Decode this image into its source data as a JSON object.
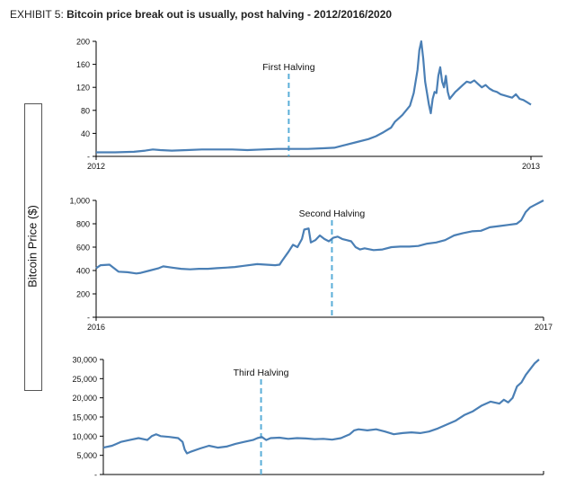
{
  "header": {
    "exhibit_label": "EXHIBIT 5: ",
    "title": "Bitcoin price break out is usually, post halving - 2012/2016/2020"
  },
  "y_axis_title": "Bitcoin Price ($)",
  "colors": {
    "line": "#4a7fb5",
    "halving": "#5aaed8",
    "axis": "#000000",
    "text": "#111111"
  },
  "chart_data": [
    {
      "type": "line",
      "ylim": [
        0,
        200
      ],
      "yticks": [
        "200",
        "160",
        "120",
        "80",
        "40",
        "-"
      ],
      "ytick_values": [
        200,
        160,
        120,
        80,
        40,
        0
      ],
      "xticks": [
        "2012",
        "2013"
      ],
      "annotation": {
        "label": "First Halving",
        "x": 0.443
      },
      "series": [
        {
          "values": [
            [
              0,
              7
            ],
            [
              0.05,
              7
            ],
            [
              0.1,
              8
            ],
            [
              0.13,
              10
            ],
            [
              0.15,
              12
            ],
            [
              0.17,
              11
            ],
            [
              0.2,
              10
            ],
            [
              0.24,
              11
            ],
            [
              0.28,
              12
            ],
            [
              0.32,
              12
            ],
            [
              0.36,
              12
            ],
            [
              0.4,
              11
            ],
            [
              0.44,
              12
            ],
            [
              0.48,
              13
            ],
            [
              0.52,
              13
            ],
            [
              0.56,
              13
            ],
            [
              0.6,
              14
            ],
            [
              0.63,
              15
            ],
            [
              0.66,
              20
            ],
            [
              0.69,
              25
            ],
            [
              0.72,
              30
            ],
            [
              0.74,
              35
            ],
            [
              0.76,
              42
            ],
            [
              0.78,
              50
            ],
            [
              0.79,
              60
            ],
            [
              0.8,
              66
            ],
            [
              0.81,
              72
            ],
            [
              0.82,
              80
            ],
            [
              0.83,
              88
            ],
            [
              0.84,
              110
            ],
            [
              0.85,
              150
            ],
            [
              0.855,
              185
            ],
            [
              0.86,
              200
            ],
            [
              0.865,
              170
            ],
            [
              0.87,
              130
            ],
            [
              0.875,
              110
            ],
            [
              0.88,
              90
            ],
            [
              0.885,
              75
            ],
            [
              0.89,
              100
            ],
            [
              0.895,
              112
            ],
            [
              0.9,
              110
            ],
            [
              0.905,
              140
            ],
            [
              0.91,
              155
            ],
            [
              0.915,
              130
            ],
            [
              0.92,
              120
            ],
            [
              0.925,
              140
            ],
            [
              0.93,
              112
            ],
            [
              0.935,
              100
            ],
            [
              0.94,
              104
            ],
            [
              0.95,
              112
            ],
            [
              0.96,
              118
            ],
            [
              0.97,
              124
            ],
            [
              0.98,
              130
            ],
            [
              0.99,
              128
            ],
            [
              1,
              132
            ],
            [
              1.01,
              126
            ],
            [
              1.02,
              120
            ],
            [
              1.03,
              124
            ],
            [
              1.04,
              118
            ],
            [
              1.05,
              114
            ],
            [
              1.06,
              112
            ],
            [
              1.07,
              108
            ],
            [
              1.08,
              106
            ],
            [
              1.09,
              104
            ],
            [
              1.1,
              102
            ],
            [
              1.11,
              108
            ],
            [
              1.12,
              100
            ],
            [
              1.13,
              98
            ],
            [
              1.14,
              94
            ],
            [
              1.15,
              90
            ]
          ]
        }
      ]
    },
    {
      "type": "line",
      "ylim": [
        0,
        1000
      ],
      "yticks": [
        "1,000",
        "800",
        "600",
        "400",
        "200",
        "-"
      ],
      "ytick_values": [
        1000,
        800,
        600,
        400,
        200,
        0
      ],
      "xticks": [
        "2016",
        "2017"
      ],
      "annotation": {
        "label": "Second Halving",
        "x": 0.527
      },
      "series": [
        {
          "values": [
            [
              0,
              420
            ],
            [
              0.01,
              445
            ],
            [
              0.03,
              450
            ],
            [
              0.04,
              420
            ],
            [
              0.05,
              390
            ],
            [
              0.07,
              385
            ],
            [
              0.09,
              375
            ],
            [
              0.1,
              380
            ],
            [
              0.12,
              400
            ],
            [
              0.14,
              420
            ],
            [
              0.15,
              435
            ],
            [
              0.17,
              425
            ],
            [
              0.19,
              415
            ],
            [
              0.21,
              410
            ],
            [
              0.23,
              415
            ],
            [
              0.25,
              415
            ],
            [
              0.27,
              420
            ],
            [
              0.29,
              425
            ],
            [
              0.31,
              430
            ],
            [
              0.33,
              440
            ],
            [
              0.36,
              455
            ],
            [
              0.38,
              450
            ],
            [
              0.4,
              445
            ],
            [
              0.41,
              450
            ],
            [
              0.415,
              480
            ],
            [
              0.43,
              560
            ],
            [
              0.44,
              620
            ],
            [
              0.45,
              600
            ],
            [
              0.46,
              670
            ],
            [
              0.465,
              750
            ],
            [
              0.475,
              760
            ],
            [
              0.48,
              640
            ],
            [
              0.49,
              660
            ],
            [
              0.5,
              700
            ],
            [
              0.51,
              670
            ],
            [
              0.52,
              650
            ],
            [
              0.53,
              680
            ],
            [
              0.54,
              690
            ],
            [
              0.55,
              670
            ],
            [
              0.56,
              660
            ],
            [
              0.57,
              650
            ],
            [
              0.58,
              600
            ],
            [
              0.59,
              580
            ],
            [
              0.6,
              590
            ],
            [
              0.62,
              575
            ],
            [
              0.64,
              580
            ],
            [
              0.66,
              600
            ],
            [
              0.68,
              605
            ],
            [
              0.7,
              605
            ],
            [
              0.72,
              610
            ],
            [
              0.74,
              630
            ],
            [
              0.76,
              640
            ],
            [
              0.78,
              660
            ],
            [
              0.8,
              700
            ],
            [
              0.82,
              720
            ],
            [
              0.84,
              735
            ],
            [
              0.86,
              740
            ],
            [
              0.88,
              770
            ],
            [
              0.9,
              780
            ],
            [
              0.92,
              790
            ],
            [
              0.94,
              800
            ],
            [
              0.95,
              830
            ],
            [
              0.96,
              900
            ],
            [
              0.97,
              940
            ],
            [
              0.98,
              960
            ],
            [
              0.99,
              980
            ],
            [
              1,
              1000
            ]
          ]
        }
      ]
    },
    {
      "type": "line",
      "ylim": [
        0,
        30000
      ],
      "yticks": [
        "30,000",
        "25,000",
        "20,000",
        "15,000",
        "10,000",
        "5,000",
        "-"
      ],
      "ytick_values": [
        30000,
        25000,
        20000,
        15000,
        10000,
        5000,
        0
      ],
      "xticks": [],
      "annotation": {
        "label": "Third Halving",
        "x": 0.362
      },
      "series": [
        {
          "values": [
            [
              0,
              7000
            ],
            [
              0.02,
              7500
            ],
            [
              0.04,
              8500
            ],
            [
              0.06,
              9000
            ],
            [
              0.08,
              9500
            ],
            [
              0.1,
              9000
            ],
            [
              0.11,
              10000
            ],
            [
              0.12,
              10500
            ],
            [
              0.13,
              10000
            ],
            [
              0.15,
              9800
            ],
            [
              0.17,
              9500
            ],
            [
              0.18,
              8500
            ],
            [
              0.185,
              6500
            ],
            [
              0.19,
              5500
            ],
            [
              0.2,
              6000
            ],
            [
              0.22,
              6800
            ],
            [
              0.24,
              7500
            ],
            [
              0.26,
              7000
            ],
            [
              0.28,
              7300
            ],
            [
              0.3,
              8000
            ],
            [
              0.32,
              8500
            ],
            [
              0.34,
              9000
            ],
            [
              0.35,
              9500
            ],
            [
              0.36,
              9800
            ],
            [
              0.37,
              9000
            ],
            [
              0.38,
              9500
            ],
            [
              0.4,
              9600
            ],
            [
              0.42,
              9300
            ],
            [
              0.44,
              9500
            ],
            [
              0.46,
              9400
            ],
            [
              0.48,
              9200
            ],
            [
              0.5,
              9300
            ],
            [
              0.52,
              9100
            ],
            [
              0.54,
              9500
            ],
            [
              0.56,
              10500
            ],
            [
              0.57,
              11500
            ],
            [
              0.58,
              11800
            ],
            [
              0.6,
              11500
            ],
            [
              0.62,
              11800
            ],
            [
              0.64,
              11200
            ],
            [
              0.66,
              10500
            ],
            [
              0.68,
              10800
            ],
            [
              0.7,
              11000
            ],
            [
              0.72,
              10800
            ],
            [
              0.74,
              11200
            ],
            [
              0.76,
              12000
            ],
            [
              0.78,
              13000
            ],
            [
              0.8,
              14000
            ],
            [
              0.82,
              15500
            ],
            [
              0.84,
              16500
            ],
            [
              0.86,
              18000
            ],
            [
              0.88,
              19000
            ],
            [
              0.9,
              18500
            ],
            [
              0.91,
              19500
            ],
            [
              0.92,
              18800
            ],
            [
              0.93,
              20000
            ],
            [
              0.94,
              23000
            ],
            [
              0.95,
              24000
            ],
            [
              0.96,
              26000
            ],
            [
              0.97,
              27500
            ],
            [
              0.98,
              29000
            ],
            [
              0.99,
              30000
            ]
          ]
        }
      ]
    }
  ]
}
